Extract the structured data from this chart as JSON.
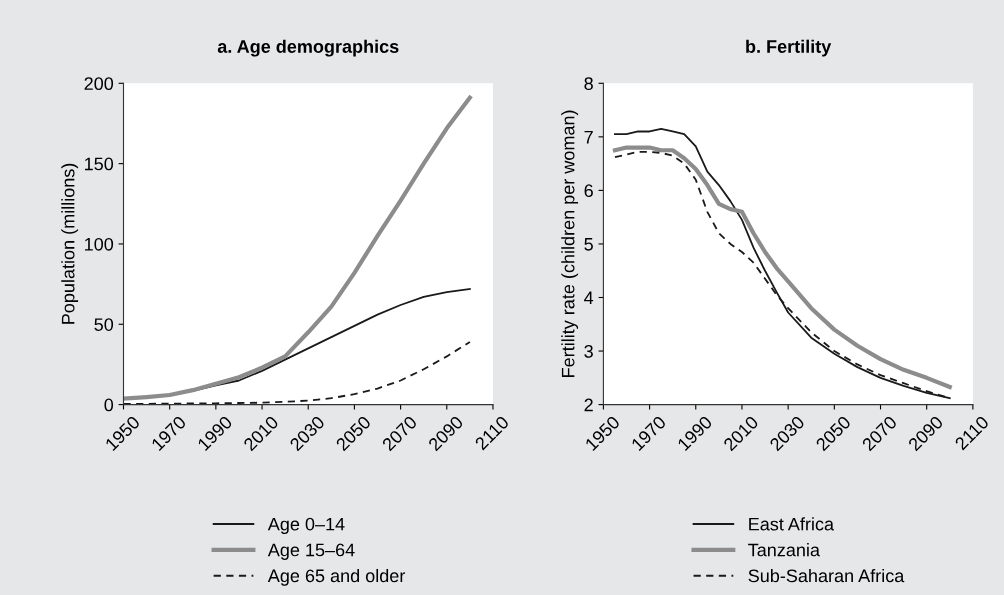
{
  "chart_data": [
    {
      "type": "line",
      "title": "a. Age demographics",
      "ylabel": "Population (millions)",
      "xlim": [
        1950,
        2110
      ],
      "xticks": [
        1950,
        1970,
        1990,
        2010,
        2030,
        2050,
        2070,
        2090,
        2110
      ],
      "ylim": [
        0,
        200
      ],
      "yticks": [
        0,
        50,
        100,
        150,
        200
      ],
      "grid": false,
      "legend": "bottom",
      "x": [
        1950,
        1960,
        1970,
        1980,
        1990,
        2000,
        2010,
        2020,
        2030,
        2040,
        2050,
        2060,
        2070,
        2080,
        2090,
        2100
      ],
      "series": [
        {
          "name": "Age 0–14",
          "color": "#1a1a1a",
          "line_style": "solid",
          "values": [
            3.5,
            4.6,
            6,
            8.5,
            12,
            15,
            21,
            28,
            35,
            42,
            49,
            56,
            62,
            67,
            70,
            72
          ]
        },
        {
          "name": "Age 15–64",
          "color": "#8c8c8c",
          "line_style": "solid",
          "values": [
            3.7,
            4.7,
            6,
            9,
            13,
            17,
            23,
            30,
            45,
            61,
            82,
            105,
            127,
            150,
            172,
            191
          ]
        },
        {
          "name": "Age 65 and older",
          "color": "#1a1a1a",
          "line_style": "dashed",
          "values": [
            0.5,
            0.5,
            0.6,
            0.7,
            0.8,
            1,
            1.2,
            1.7,
            2.5,
            4,
            6.5,
            10,
            15,
            22,
            30,
            39
          ]
        }
      ]
    },
    {
      "type": "line",
      "title": "b. Fertility",
      "ylabel": "Fertility rate (children per woman)",
      "xlim": [
        1950,
        2110
      ],
      "xticks": [
        1950,
        1970,
        1990,
        2010,
        2030,
        2050,
        2070,
        2090,
        2110
      ],
      "ylim": [
        2,
        8
      ],
      "yticks": [
        2,
        3,
        4,
        5,
        6,
        7,
        8
      ],
      "grid": false,
      "legend": "bottom",
      "x": [
        1955,
        1960,
        1965,
        1970,
        1975,
        1980,
        1985,
        1990,
        1995,
        2000,
        2005,
        2010,
        2015,
        2020,
        2025,
        2030,
        2040,
        2050,
        2060,
        2070,
        2080,
        2090,
        2100
      ],
      "series": [
        {
          "name": "East Africa",
          "color": "#1a1a1a",
          "line_style": "solid",
          "values": [
            7.05,
            7.05,
            7.1,
            7.1,
            7.15,
            7.1,
            7.05,
            6.82,
            6.35,
            6.1,
            5.8,
            5.45,
            4.93,
            4.5,
            4.1,
            3.72,
            3.25,
            2.95,
            2.7,
            2.5,
            2.35,
            2.22,
            2.12
          ]
        },
        {
          "name": "Tanzania",
          "color": "#8c8c8c",
          "line_style": "solid",
          "values": [
            6.75,
            6.8,
            6.8,
            6.8,
            6.75,
            6.75,
            6.6,
            6.4,
            6.1,
            5.75,
            5.65,
            5.6,
            5.2,
            4.85,
            4.55,
            4.3,
            3.8,
            3.4,
            3.1,
            2.85,
            2.65,
            2.5,
            2.33
          ]
        },
        {
          "name": "Sub-Saharan Africa",
          "color": "#1a1a1a",
          "line_style": "dashed",
          "values": [
            6.62,
            6.67,
            6.72,
            6.72,
            6.7,
            6.65,
            6.5,
            6.2,
            5.6,
            5.2,
            5.0,
            4.85,
            4.65,
            4.35,
            4.05,
            3.8,
            3.35,
            3.0,
            2.75,
            2.55,
            2.4,
            2.25,
            2.12
          ]
        }
      ]
    }
  ]
}
